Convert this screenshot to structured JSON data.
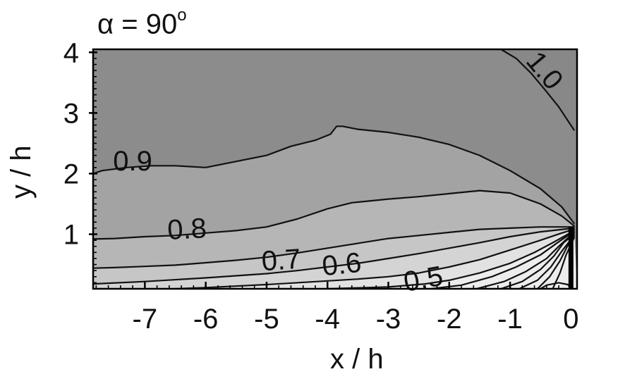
{
  "chart_data": {
    "type": "contour",
    "title_symbol": "α",
    "title_eq": " = 90",
    "title_sup": "o",
    "xlabel": "x / h",
    "ylabel": "y / h",
    "xlim": [
      -7.85,
      0.1
    ],
    "ylim": [
      0.1,
      4.05
    ],
    "xticks": [
      -7,
      -6,
      -5,
      -4,
      -3,
      -2,
      -1,
      0
    ],
    "yticks": [
      1,
      2,
      3,
      4
    ],
    "xtick_labels": [
      "-7",
      "-6",
      "-5",
      "-4",
      "-3",
      "-2",
      "-1",
      "0"
    ],
    "ytick_labels": [
      "1",
      "2",
      "3",
      "4"
    ],
    "grid": false,
    "wall": {
      "x": 0.0,
      "y_top": 1.12
    },
    "levels": [
      {
        "level": 1.0,
        "label": "1.0",
        "points": [
          [
            -1.15,
            4.05
          ],
          [
            -0.9,
            3.9
          ],
          [
            -0.65,
            3.65
          ],
          [
            -0.4,
            3.35
          ],
          [
            -0.2,
            3.1
          ],
          [
            0.05,
            2.72
          ]
        ]
      },
      {
        "level": 0.9,
        "label": "0.9",
        "points": [
          [
            -7.85,
            2.0
          ],
          [
            -7.7,
            2.05
          ],
          [
            -7.3,
            2.1
          ],
          [
            -6.9,
            2.13
          ],
          [
            -6.5,
            2.13
          ],
          [
            -6.0,
            2.1
          ],
          [
            -5.5,
            2.2
          ],
          [
            -5.0,
            2.3
          ],
          [
            -4.6,
            2.45
          ],
          [
            -4.2,
            2.55
          ],
          [
            -3.95,
            2.65
          ],
          [
            -3.85,
            2.78
          ],
          [
            -3.75,
            2.78
          ],
          [
            -3.5,
            2.73
          ],
          [
            -3.0,
            2.68
          ],
          [
            -2.5,
            2.6
          ],
          [
            -2.0,
            2.48
          ],
          [
            -1.5,
            2.3
          ],
          [
            -1.0,
            2.05
          ],
          [
            -0.5,
            1.75
          ],
          [
            -0.15,
            1.45
          ],
          [
            0.05,
            1.18
          ]
        ]
      },
      {
        "level": 0.8,
        "label": "0.8",
        "points": [
          [
            -7.85,
            0.92
          ],
          [
            -7.5,
            0.93
          ],
          [
            -7.0,
            0.96
          ],
          [
            -6.5,
            0.98
          ],
          [
            -6.0,
            1.02
          ],
          [
            -5.5,
            1.06
          ],
          [
            -5.0,
            1.12
          ],
          [
            -4.5,
            1.25
          ],
          [
            -4.0,
            1.42
          ],
          [
            -3.6,
            1.52
          ],
          [
            -3.0,
            1.58
          ],
          [
            -2.5,
            1.62
          ],
          [
            -2.0,
            1.67
          ],
          [
            -1.5,
            1.72
          ],
          [
            -1.0,
            1.68
          ],
          [
            -0.5,
            1.5
          ],
          [
            -0.15,
            1.3
          ],
          [
            0.05,
            1.14
          ]
        ]
      },
      {
        "level": 0.7,
        "label": "0.7",
        "points": [
          [
            -7.85,
            0.44
          ],
          [
            -7.5,
            0.45
          ],
          [
            -7.0,
            0.47
          ],
          [
            -6.5,
            0.49
          ],
          [
            -6.0,
            0.53
          ],
          [
            -5.5,
            0.57
          ],
          [
            -5.0,
            0.62
          ],
          [
            -4.5,
            0.69
          ],
          [
            -4.0,
            0.77
          ],
          [
            -3.5,
            0.85
          ],
          [
            -3.0,
            0.93
          ],
          [
            -2.5,
            0.98
          ],
          [
            -2.0,
            1.03
          ],
          [
            -1.5,
            1.08
          ],
          [
            -1.0,
            1.1
          ],
          [
            -0.5,
            1.12
          ],
          [
            0.05,
            1.12
          ]
        ]
      },
      {
        "level": 0.6,
        "label": "0.6",
        "points": [
          [
            -7.85,
            0.18
          ],
          [
            -7.0,
            0.22
          ],
          [
            -6.0,
            0.28
          ],
          [
            -5.0,
            0.35
          ],
          [
            -4.5,
            0.4
          ],
          [
            -4.0,
            0.46
          ],
          [
            -3.5,
            0.52
          ],
          [
            -3.0,
            0.6
          ],
          [
            -2.5,
            0.68
          ],
          [
            -2.0,
            0.77
          ],
          [
            -1.5,
            0.86
          ],
          [
            -1.0,
            0.96
          ],
          [
            -0.5,
            1.04
          ],
          [
            0.05,
            1.1
          ]
        ]
      },
      {
        "level": 0.5,
        "label": "0.5",
        "points": [
          [
            -6.5,
            0.1
          ],
          [
            -6.0,
            0.12
          ],
          [
            -5.0,
            0.17
          ],
          [
            -4.0,
            0.23
          ],
          [
            -3.5,
            0.26
          ],
          [
            -3.0,
            0.3
          ],
          [
            -2.5,
            0.36
          ],
          [
            -2.0,
            0.46
          ],
          [
            -1.5,
            0.58
          ],
          [
            -1.0,
            0.74
          ],
          [
            -0.5,
            0.9
          ],
          [
            -0.15,
            1.02
          ],
          [
            0.05,
            1.08
          ]
        ]
      },
      {
        "level": 0.45,
        "label": "",
        "points": [
          [
            -4.0,
            0.1
          ],
          [
            -3.0,
            0.13
          ],
          [
            -2.4,
            0.18
          ],
          [
            -2.0,
            0.24
          ],
          [
            -1.5,
            0.36
          ],
          [
            -1.0,
            0.52
          ],
          [
            -0.6,
            0.7
          ],
          [
            -0.3,
            0.86
          ],
          [
            -0.05,
            1.0
          ],
          [
            0.05,
            1.06
          ]
        ]
      },
      {
        "level": 0.4,
        "label": "",
        "points": [
          [
            -2.3,
            0.1
          ],
          [
            -1.8,
            0.16
          ],
          [
            -1.3,
            0.3
          ],
          [
            -0.9,
            0.46
          ],
          [
            -0.5,
            0.66
          ],
          [
            -0.25,
            0.84
          ],
          [
            -0.05,
            0.98
          ],
          [
            0.05,
            1.04
          ]
        ]
      },
      {
        "level": 0.35,
        "label": "",
        "points": [
          [
            -1.55,
            0.1
          ],
          [
            -1.1,
            0.22
          ],
          [
            -0.75,
            0.38
          ],
          [
            -0.4,
            0.6
          ],
          [
            -0.2,
            0.8
          ],
          [
            -0.03,
            0.96
          ],
          [
            0.05,
            1.02
          ]
        ]
      },
      {
        "level": 0.3,
        "label": "",
        "points": [
          [
            -1.15,
            0.1
          ],
          [
            -0.8,
            0.22
          ],
          [
            -0.5,
            0.42
          ],
          [
            -0.28,
            0.64
          ],
          [
            -0.12,
            0.86
          ],
          [
            0.05,
            1.0
          ]
        ]
      },
      {
        "level": 0.25,
        "label": "",
        "points": [
          [
            -0.85,
            0.1
          ],
          [
            -0.55,
            0.24
          ],
          [
            -0.33,
            0.46
          ],
          [
            -0.15,
            0.72
          ],
          [
            0.05,
            0.98
          ]
        ]
      },
      {
        "level": 0.2,
        "label": "",
        "points": [
          [
            -0.55,
            0.1
          ],
          [
            -0.35,
            0.3
          ],
          [
            -0.18,
            0.56
          ],
          [
            -0.05,
            0.82
          ],
          [
            0.05,
            0.96
          ]
        ]
      },
      {
        "level": 0.15,
        "label": "",
        "points": [
          [
            -0.3,
            0.1
          ],
          [
            -0.18,
            0.36
          ],
          [
            -0.08,
            0.66
          ],
          [
            0.05,
            0.94
          ]
        ]
      },
      {
        "level": 0.1,
        "label": "",
        "points": [
          [
            -0.5,
            0.1
          ],
          [
            -0.4,
            0.16
          ],
          [
            -0.2,
            0.2
          ],
          [
            -0.05,
            0.17
          ],
          [
            0.0,
            0.1
          ]
        ]
      }
    ],
    "fills": [
      {
        "between": "above 0.9",
        "color": "#8c8c8c"
      },
      {
        "between": "0.8-0.9",
        "color": "#a3a3a3"
      },
      {
        "between": "0.7-0.8",
        "color": "#b6b6b6"
      },
      {
        "between": "0.6-0.7",
        "color": "#c6c6c6"
      },
      {
        "between": "0.5-0.6",
        "color": "#d4d4d4"
      },
      {
        "between": "below 0.5",
        "color": "#e2e2e2"
      },
      {
        "between": "near wall",
        "color": "#ededed"
      }
    ],
    "contour_labels": [
      {
        "text": "1.0",
        "x": -0.55,
        "y": 3.6,
        "rotate": 50
      },
      {
        "text": "0.9",
        "x": -7.2,
        "y": 2.05,
        "rotate": 0
      },
      {
        "text": "0.8",
        "x": -6.3,
        "y": 0.93,
        "rotate": -3
      },
      {
        "text": "0.7",
        "x": -4.75,
        "y": 0.42,
        "rotate": -4
      },
      {
        "text": "0.6",
        "x": -3.75,
        "y": 0.35,
        "rotate": -6
      },
      {
        "text": "0.5",
        "x": -2.4,
        "y": 0.11,
        "rotate": -10
      }
    ]
  }
}
